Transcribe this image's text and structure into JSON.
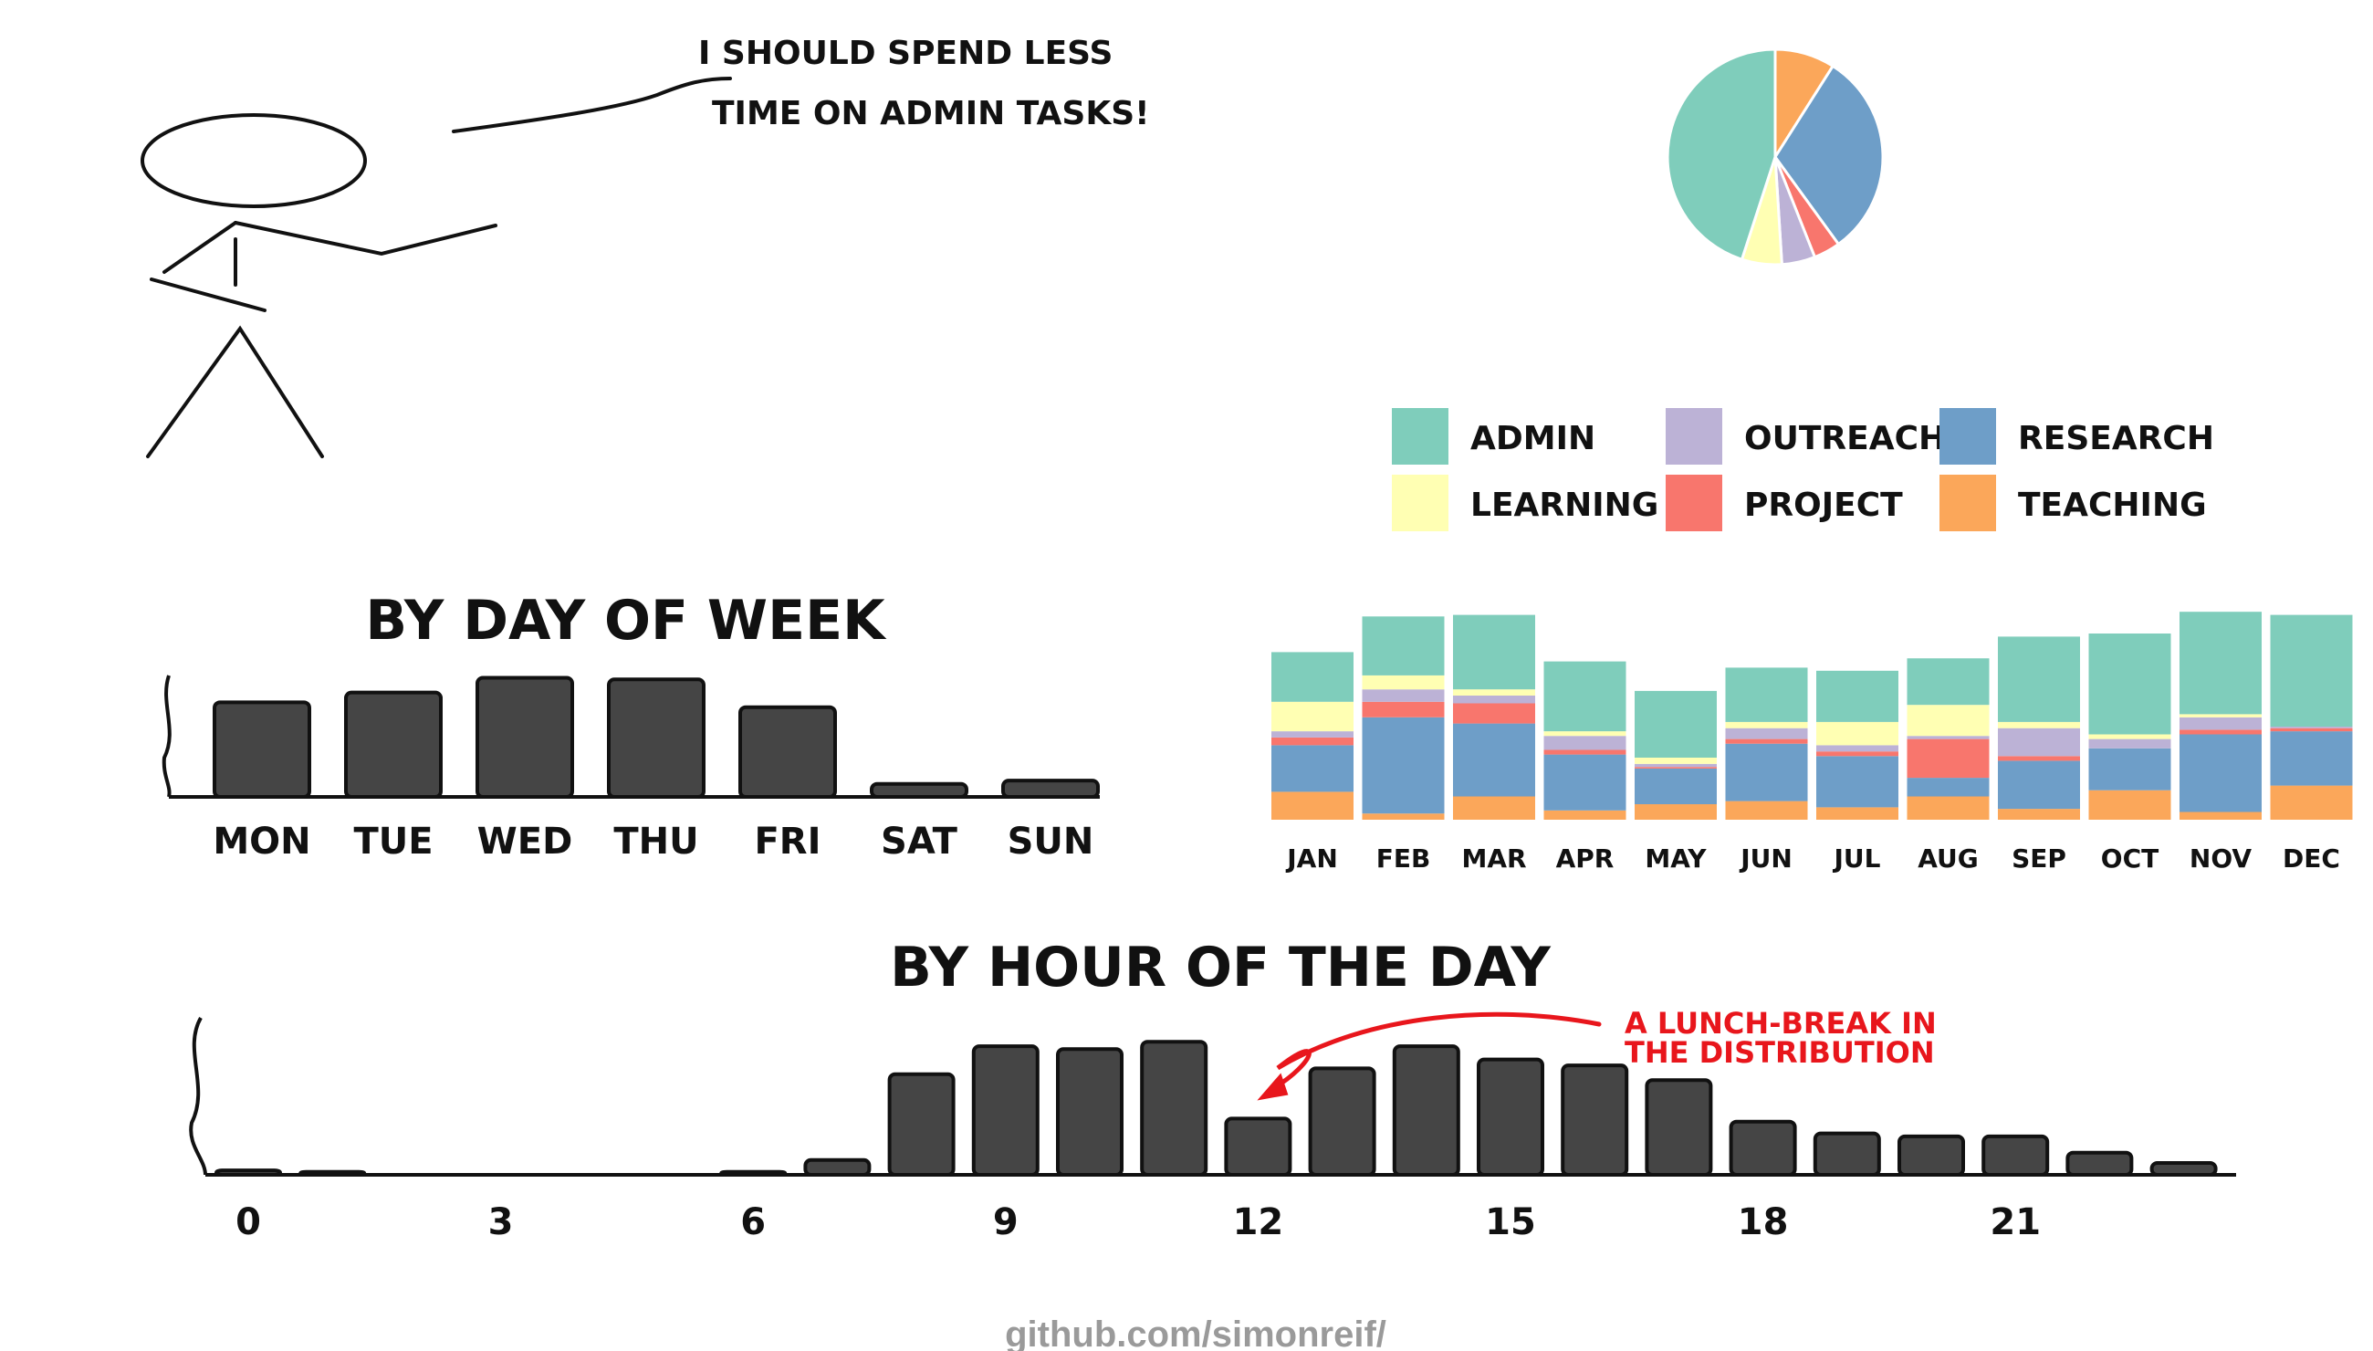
{
  "comic": {
    "speech_line1": "I SHOULD SPEND LESS",
    "speech_line2": "TIME ON ADMIN TASKS!"
  },
  "footer": {
    "credit": "github.com/simonreif/"
  },
  "colors": {
    "ADMIN": "#7fcdbb",
    "LEARNING": "#ffffb3",
    "OUTREACH": "#bcb2d6",
    "PROJECT": "#f8766d",
    "RESEARCH": "#6e9ec8",
    "TEACHING": "#fba75a",
    "bar": "#454545",
    "annotation": "#e8161c"
  },
  "chart_data": [
    {
      "type": "pie",
      "labels": [
        "TEACHING",
        "RESEARCH",
        "PROJECT",
        "OUTREACH",
        "LEARNING",
        "ADMIN"
      ],
      "values": [
        9,
        31,
        4,
        5,
        6,
        45
      ]
    },
    {
      "type": "legend",
      "entries": [
        "ADMIN",
        "OUTREACH",
        "RESEARCH",
        "LEARNING",
        "PROJECT",
        "TEACHING"
      ]
    },
    {
      "type": "bar",
      "title": "BY DAY OF WEEK",
      "categories": [
        "MON",
        "TUE",
        "WED",
        "THU",
        "FRI",
        "SAT",
        "SUN"
      ],
      "values": [
        58,
        64,
        73,
        72,
        55,
        8,
        10
      ],
      "ylim": [
        0,
        80
      ]
    },
    {
      "type": "bar",
      "stacked": true,
      "categories": [
        "JAN",
        "FEB",
        "MAR",
        "APR",
        "MAY",
        "JUN",
        "JUL",
        "AUG",
        "SEP",
        "OCT",
        "NOV",
        "DEC"
      ],
      "series": [
        {
          "name": "TEACHING",
          "values": [
            18,
            4,
            15,
            6,
            10,
            12,
            8,
            15,
            7,
            19,
            5,
            22
          ]
        },
        {
          "name": "RESEARCH",
          "values": [
            30,
            62,
            47,
            36,
            23,
            37,
            33,
            12,
            31,
            27,
            50,
            35
          ]
        },
        {
          "name": "PROJECT",
          "values": [
            5,
            10,
            13,
            3,
            1,
            3,
            3,
            25,
            3,
            0,
            3,
            2
          ]
        },
        {
          "name": "OUTREACH",
          "values": [
            4,
            8,
            5,
            9,
            2,
            7,
            4,
            2,
            18,
            6,
            8,
            1
          ]
        },
        {
          "name": "LEARNING",
          "values": [
            19,
            9,
            4,
            3,
            4,
            4,
            15,
            20,
            4,
            3,
            2,
            0
          ]
        },
        {
          "name": "ADMIN",
          "values": [
            32,
            38,
            48,
            45,
            43,
            35,
            33,
            30,
            55,
            65,
            66,
            72
          ]
        }
      ],
      "ylim": [
        0,
        140
      ]
    },
    {
      "type": "bar",
      "title": "BY HOUR OF THE DAY",
      "x": [
        0,
        1,
        2,
        3,
        4,
        5,
        6,
        7,
        8,
        9,
        10,
        11,
        12,
        13,
        14,
        15,
        16,
        17,
        18,
        19,
        20,
        21,
        22,
        23
      ],
      "xticks": [
        "0",
        "3",
        "6",
        "9",
        "12",
        "15",
        "18",
        "21"
      ],
      "values": [
        3,
        2,
        0,
        0,
        0,
        0,
        2,
        10,
        68,
        87,
        85,
        90,
        38,
        72,
        87,
        78,
        74,
        64,
        36,
        28,
        26,
        26,
        15,
        8
      ],
      "ylim": [
        0,
        100
      ],
      "annotation": {
        "line1": "A LUNCH-BREAK IN",
        "line2": "THE DISTRIBUTION",
        "x": 12
      }
    }
  ]
}
